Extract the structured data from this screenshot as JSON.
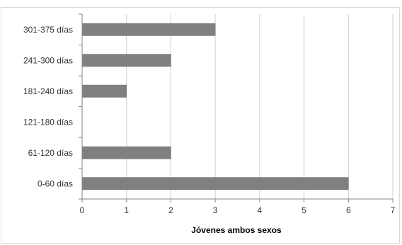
{
  "chart_data": {
    "type": "bar",
    "orientation": "horizontal",
    "categories": [
      "0-60 días",
      "61-120 días",
      "121-180 días",
      "181-240 días",
      "241-300 días",
      "301-375 días"
    ],
    "values": [
      6,
      2,
      0,
      1,
      2,
      3
    ],
    "title": "",
    "xlabel": "Jóvenes ambos sexos",
    "ylabel": "",
    "xlim": [
      0,
      7
    ],
    "x_ticks": [
      "0",
      "1",
      "2",
      "3",
      "4",
      "5",
      "6",
      "7"
    ],
    "grid": "vertical",
    "legend": "none",
    "bar_color": "#808080"
  }
}
